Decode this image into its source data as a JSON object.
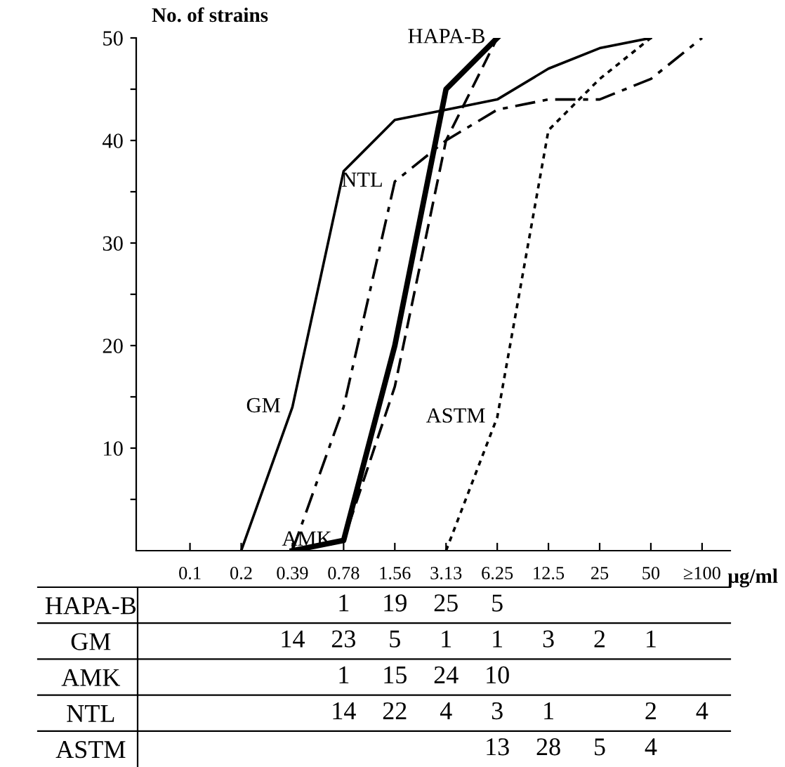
{
  "chart_data": [
    {
      "type": "line",
      "ylabel": "No. of strains",
      "xlabel": "μg/ml",
      "categories": [
        "0.1",
        "0.2",
        "0.39",
        "0.78",
        "1.56",
        "3.13",
        "6.25",
        "12.5",
        "25",
        "50",
        "≥100"
      ],
      "ylim": [
        0,
        50
      ],
      "yticks": [
        {
          "value": 5,
          "label": null
        },
        10,
        {
          "value": 15,
          "label": null
        },
        20,
        {
          "value": 25,
          "label": null
        },
        30,
        {
          "value": 35,
          "label": null
        },
        40,
        {
          "value": 45,
          "label": null
        },
        50
      ],
      "series": [
        {
          "color": "#000000",
          "line_style": "solid",
          "values": [
            null,
            null,
            0,
            1,
            20,
            45,
            50,
            null,
            null,
            null,
            null
          ]
        },
        {
          "color": "#000000",
          "line_style": "solid",
          "values": [
            null,
            0,
            14,
            37,
            42,
            43,
            44,
            47,
            49,
            50,
            null
          ]
        },
        {
          "color": "#000000",
          "line_style": "dashed",
          "values": [
            null,
            null,
            0,
            1,
            16,
            40,
            50,
            null,
            null,
            null,
            null
          ]
        },
        {
          "color": "#000000",
          "line_style": "dashdot",
          "values": [
            null,
            null,
            0,
            14,
            36,
            40,
            43,
            44,
            44,
            46,
            50
          ]
        },
        {
          "color": "#000000",
          "line_style": "dotted",
          "values": [
            null,
            null,
            null,
            null,
            null,
            0,
            13,
            41,
            46,
            50,
            null
          ]
        }
      ],
      "annotations": [
        {
          "text": "HAPA-B",
          "x": "6.25",
          "y": 50
        },
        {
          "text": "GM",
          "x": "0.39",
          "y": 14
        },
        {
          "text": "AMK",
          "x": "0.78",
          "y": 1
        },
        {
          "text": "NTL",
          "x": "1.56",
          "y": 36
        },
        {
          "text": "ASTM",
          "x": "6.25",
          "y": 13
        }
      ]
    },
    {
      "type": "heatmap",
      "data_labels": true,
      "categories": [
        null,
        null,
        null,
        null,
        null,
        null,
        null,
        null,
        null,
        null,
        null
      ],
      "y_categories": [
        "HAPA-B",
        "GM",
        "AMK",
        "NTL",
        "ASTM"
      ],
      "cells": [
        [
          null,
          null,
          null,
          1,
          19,
          25,
          5,
          null,
          null,
          null,
          null
        ],
        [
          null,
          null,
          14,
          23,
          5,
          1,
          1,
          3,
          2,
          1,
          null
        ],
        [
          null,
          null,
          null,
          1,
          15,
          24,
          10,
          null,
          null,
          null,
          null
        ],
        [
          null,
          null,
          null,
          14,
          22,
          4,
          3,
          1,
          null,
          2,
          4
        ],
        [
          null,
          null,
          null,
          null,
          null,
          null,
          13,
          28,
          5,
          4,
          null
        ]
      ]
    }
  ]
}
